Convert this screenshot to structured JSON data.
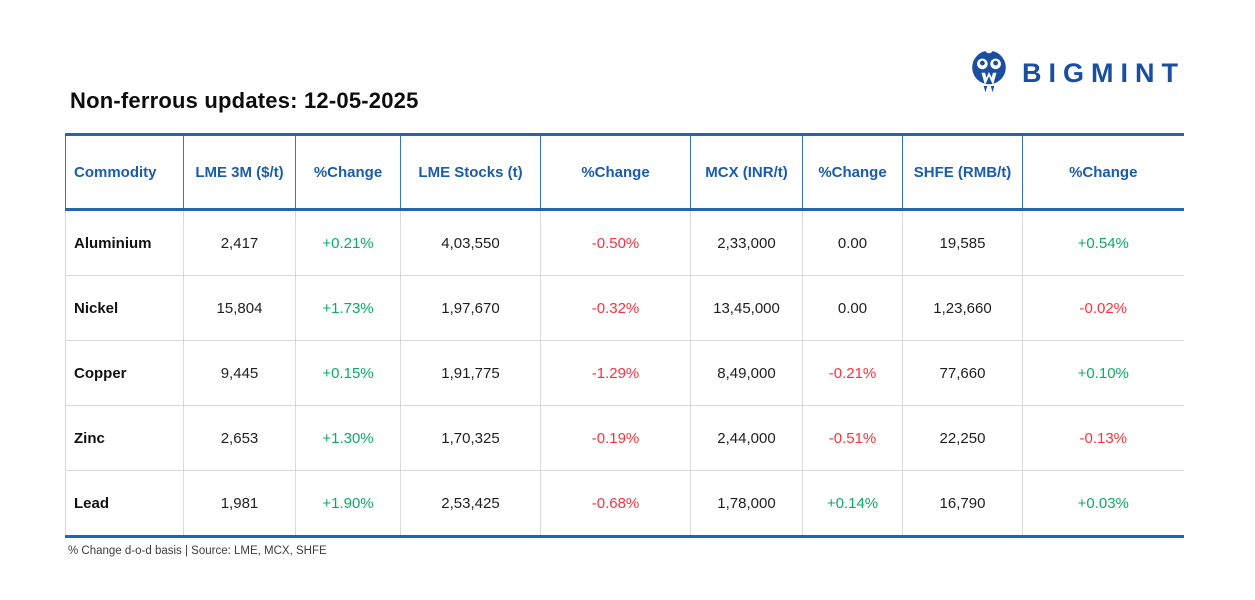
{
  "logo": {
    "brand": "BIGMINT",
    "icon": "bigmint-owl-icon"
  },
  "page": {
    "title": "Non-ferrous updates: 12-05-2025",
    "footnote": "% Change d-o-d basis | Source: LME, MCX, SHFE"
  },
  "colors": {
    "accent-blue": "#1b5cab",
    "border-blue": "#2365af",
    "logo-blue": "#1a4fa0",
    "positive": "#0cac64",
    "negative": "#f8333c",
    "grid-gray": "#d9d9d9"
  },
  "chart_data": {
    "type": "table",
    "title": "Non-ferrous updates: 12-05-2025",
    "columns": [
      "Commodity",
      "LME 3M ($/t)",
      "%Change",
      "LME Stocks (t)",
      "%Change",
      "MCX (INR/t)",
      "%Change",
      "SHFE (RMB/t)",
      "%Change"
    ],
    "rows": [
      [
        "Aluminium",
        "2,417",
        "+0.21%",
        "4,03,550",
        "-0.50%",
        "2,33,000",
        "0.00",
        "19,585",
        "+0.54%"
      ],
      [
        "Nickel",
        "15,804",
        "+1.73%",
        "1,97,670",
        "-0.32%",
        "13,45,000",
        "0.00",
        "1,23,660",
        "-0.02%"
      ],
      [
        "Copper",
        "9,445",
        "+0.15%",
        "1,91,775",
        "-1.29%",
        "8,49,000",
        "-0.21%",
        "77,660",
        "+0.10%"
      ],
      [
        "Zinc",
        "2,653",
        "+1.30%",
        "1,70,325",
        "-0.19%",
        "2,44,000",
        "-0.51%",
        "22,250",
        "-0.13%"
      ],
      [
        "Lead",
        "1,981",
        "+1.90%",
        "2,53,425",
        "-0.68%",
        "1,78,000",
        "+0.14%",
        "16,790",
        "+0.03%"
      ]
    ]
  }
}
